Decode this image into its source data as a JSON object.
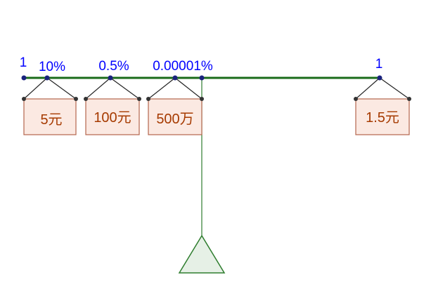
{
  "left_end_label": "1",
  "right_end_label": "1",
  "point_labels": {
    "p1": "10%",
    "p2": "0.5%",
    "p3": "0.00001%"
  },
  "weights": {
    "w1": "5元",
    "w2": "100元",
    "w3": "500万",
    "w4": "1.5元"
  },
  "colors": {
    "beam": "#1a6b1a",
    "label": "#0000ff",
    "box_fill": "#fbe9e2",
    "box_stroke": "#b5654d",
    "box_text": "#a63a00",
    "fulcrum_fill": "#e6f0e6",
    "fulcrum_stroke": "#2e7d2e",
    "point": "#1a237e",
    "hanger_point": "#333333"
  }
}
